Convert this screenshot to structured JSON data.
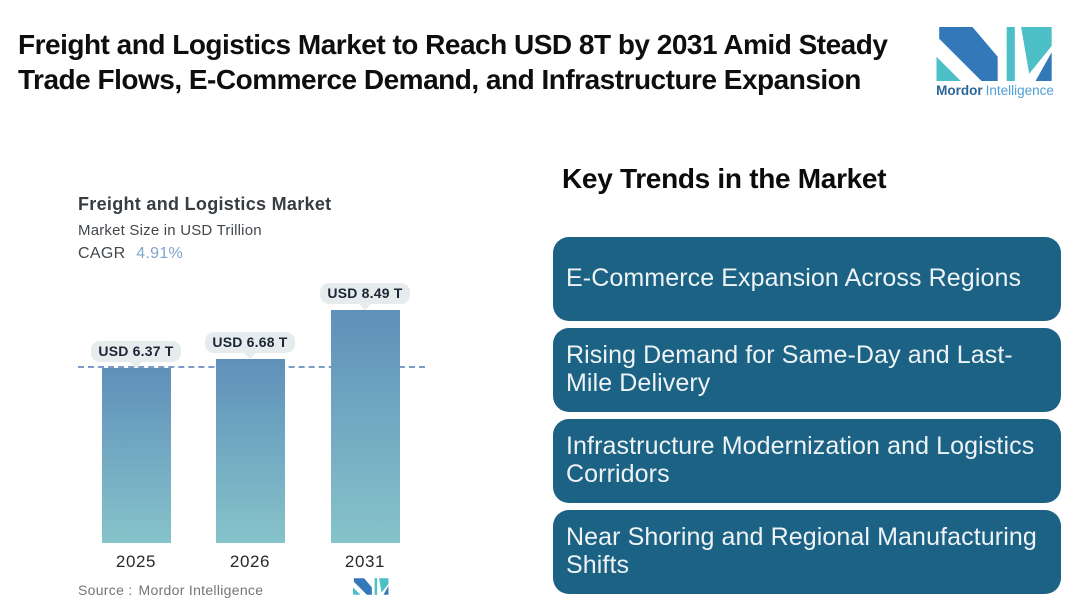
{
  "header": {
    "title_line1": "Freight and Logistics Market to Reach USD 8T by 2031 Amid Steady",
    "title_line2": "Trade Flows, E-Commerce Demand, and Infrastructure Expansion"
  },
  "logo": {
    "brand_bold": "Mordor",
    "brand_light": "Intelligence",
    "colors": {
      "dark_blue": "#3379b9",
      "teal": "#4cc0c6"
    }
  },
  "chart": {
    "title": "Freight and Logistics Market",
    "subtitle": "Market Size in USD Trillion",
    "cagr_label": "CAGR",
    "cagr_value": "4.91%",
    "source_prefix": "Source :",
    "source_text": "Mordor Intelligence"
  },
  "chart_data": {
    "type": "bar",
    "title": "Freight and Logistics Market",
    "ylabel": "Market Size in USD Trillion",
    "cagr": "4.91%",
    "categories": [
      "2025",
      "2026",
      "2031"
    ],
    "values": [
      6.37,
      6.68,
      8.49
    ],
    "value_labels": [
      "USD 6.37 T",
      "USD 6.68 T",
      "USD 8.49 T"
    ],
    "unit": "USD Trillion",
    "ylim": [
      0,
      8.49
    ],
    "reference_line": 6.37,
    "grid": false,
    "legend": "none",
    "bar_gradient_top": "#5f90ba",
    "bar_gradient_bottom": "#86c3ca",
    "reference_line_color": "#7b9cc6",
    "label_pill_color": "#e6ecee"
  },
  "trends": {
    "heading": "Key Trends in the Market",
    "box_color": "#1c6285",
    "items": [
      "E-Commerce Expansion Across Regions",
      "Rising Demand for Same-Day and Last-Mile Delivery",
      "Infrastructure Modernization and Logistics Corridors",
      "Near Shoring and Regional Manufacturing Shifts"
    ]
  }
}
